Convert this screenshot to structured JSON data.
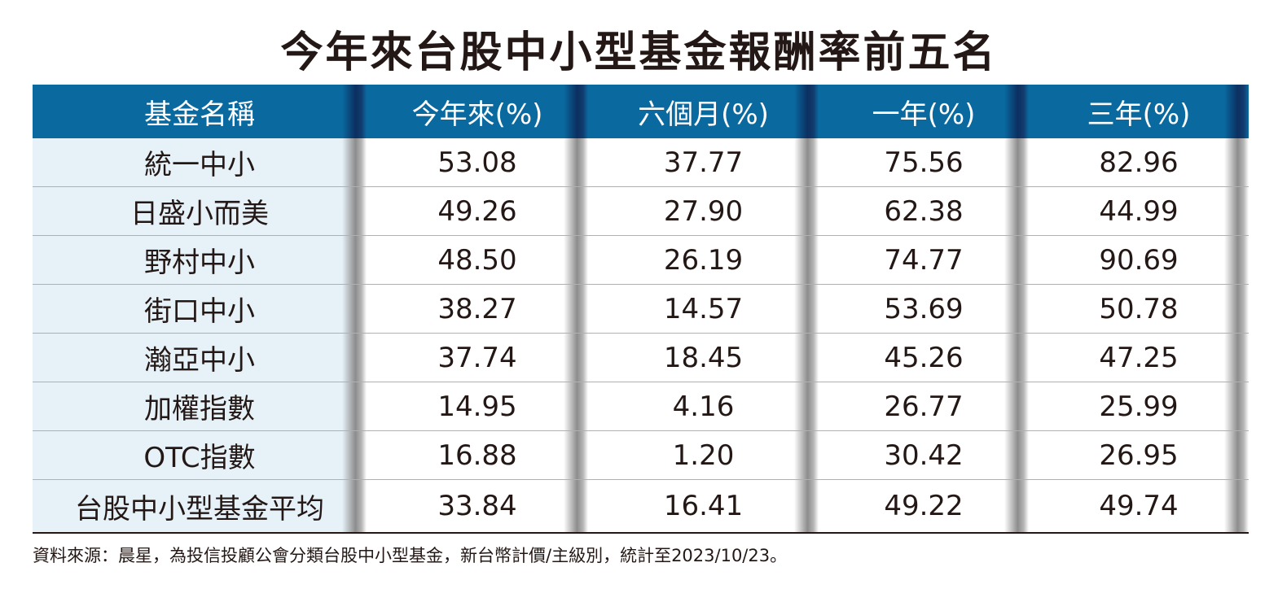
{
  "title": "今年來台股中小型基金報酬率前五名",
  "table": {
    "headers": [
      "基金名稱",
      "今年來(%)",
      "六個月(%)",
      "一年(%)",
      "三年(%)"
    ],
    "rows": [
      [
        "統一中小",
        "53.08",
        "37.77",
        "75.56",
        "82.96"
      ],
      [
        "日盛小而美",
        "49.26",
        "27.90",
        "62.38",
        "44.99"
      ],
      [
        "野村中小",
        "48.50",
        "26.19",
        "74.77",
        "90.69"
      ],
      [
        "街口中小",
        "38.27",
        "14.57",
        "53.69",
        "50.78"
      ],
      [
        "瀚亞中小",
        "37.74",
        "18.45",
        "45.26",
        "47.25"
      ],
      [
        "加權指數",
        "14.95",
        "4.16",
        "26.77",
        "25.99"
      ],
      [
        "OTC指數",
        "16.88",
        "1.20",
        "30.42",
        "26.95"
      ],
      [
        "台股中小型基金平均",
        "33.84",
        "16.41",
        "49.22",
        "49.74"
      ]
    ]
  },
  "footer": "資料來源：晨星，為投信投顧公會分類台股中小型基金，新台幣計價/主級別，統計至2023/10/23。",
  "colors": {
    "header_bg": "#0a6aa0",
    "name_col_bg": "#e6f1f8",
    "text": "#231815"
  }
}
